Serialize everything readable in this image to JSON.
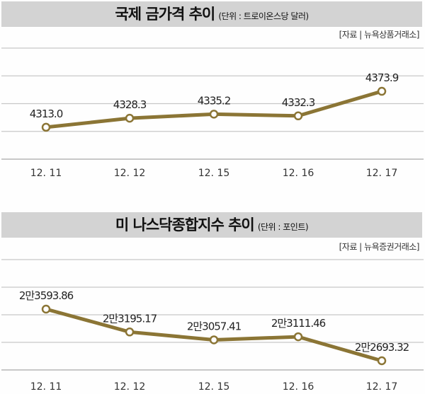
{
  "chart_data": [
    {
      "type": "line",
      "title": "국제 금가격 추이",
      "unit": "(단위 : 트로이온스당 달러)",
      "source": "[자료 | 뉴욕상품거래소]",
      "categories": [
        "12. 11",
        "12. 12",
        "12. 15",
        "12. 16",
        "12. 17"
      ],
      "labels": [
        "4313.0",
        "4328.3",
        "4335.2",
        "4332.3",
        "4373.9"
      ],
      "values": [
        4313.0,
        4328.3,
        4335.2,
        4332.3,
        4373.9
      ],
      "ylim": [
        4259,
        4447
      ],
      "grid": true
    },
    {
      "type": "line",
      "title": "미 나스닥종합지수 추이",
      "unit": "(단위 : 포인트)",
      "source": "[자료 | 뉴욕증권거래소]",
      "categories": [
        "12. 11",
        "12. 12",
        "12. 15",
        "12. 16",
        "12. 17"
      ],
      "labels": [
        "2만3593.86",
        "2만3195.17",
        "2만3057.41",
        "2만3111.46",
        "2만2693.32"
      ],
      "values": [
        23593.86,
        23195.17,
        23057.41,
        23111.46,
        22693.32
      ],
      "ylim": [
        22533,
        24457
      ],
      "grid": true
    }
  ],
  "colors": {
    "line": "#8b7535",
    "grid": "#c8c8c8",
    "titlebar": "#d3d3d3"
  }
}
